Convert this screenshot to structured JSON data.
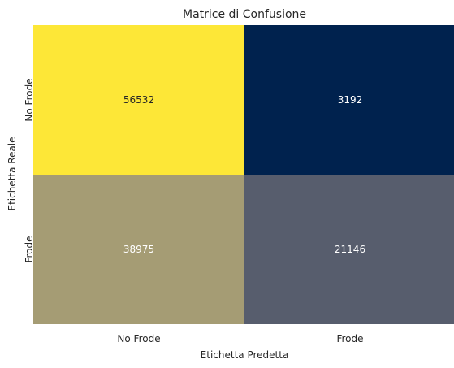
{
  "chart_data": {
    "type": "heatmap",
    "title": "Matrice di Confusione",
    "xlabel": "Etichetta Predetta",
    "ylabel": "Etichetta Reale",
    "x_categories": [
      "No Frode",
      "Frode"
    ],
    "y_categories": [
      "No Frode",
      "Frode"
    ],
    "values": [
      [
        56532,
        3192
      ],
      [
        38975,
        21146
      ]
    ],
    "colormap": "cividis",
    "cell_colors": [
      [
        "#fde737",
        "#00224e"
      ],
      [
        "#a59c74",
        "#575d6d"
      ]
    ],
    "text_colors": [
      [
        "#262626",
        "#ffffff"
      ],
      [
        "#ffffff",
        "#ffffff"
      ]
    ],
    "colorbar": false
  }
}
